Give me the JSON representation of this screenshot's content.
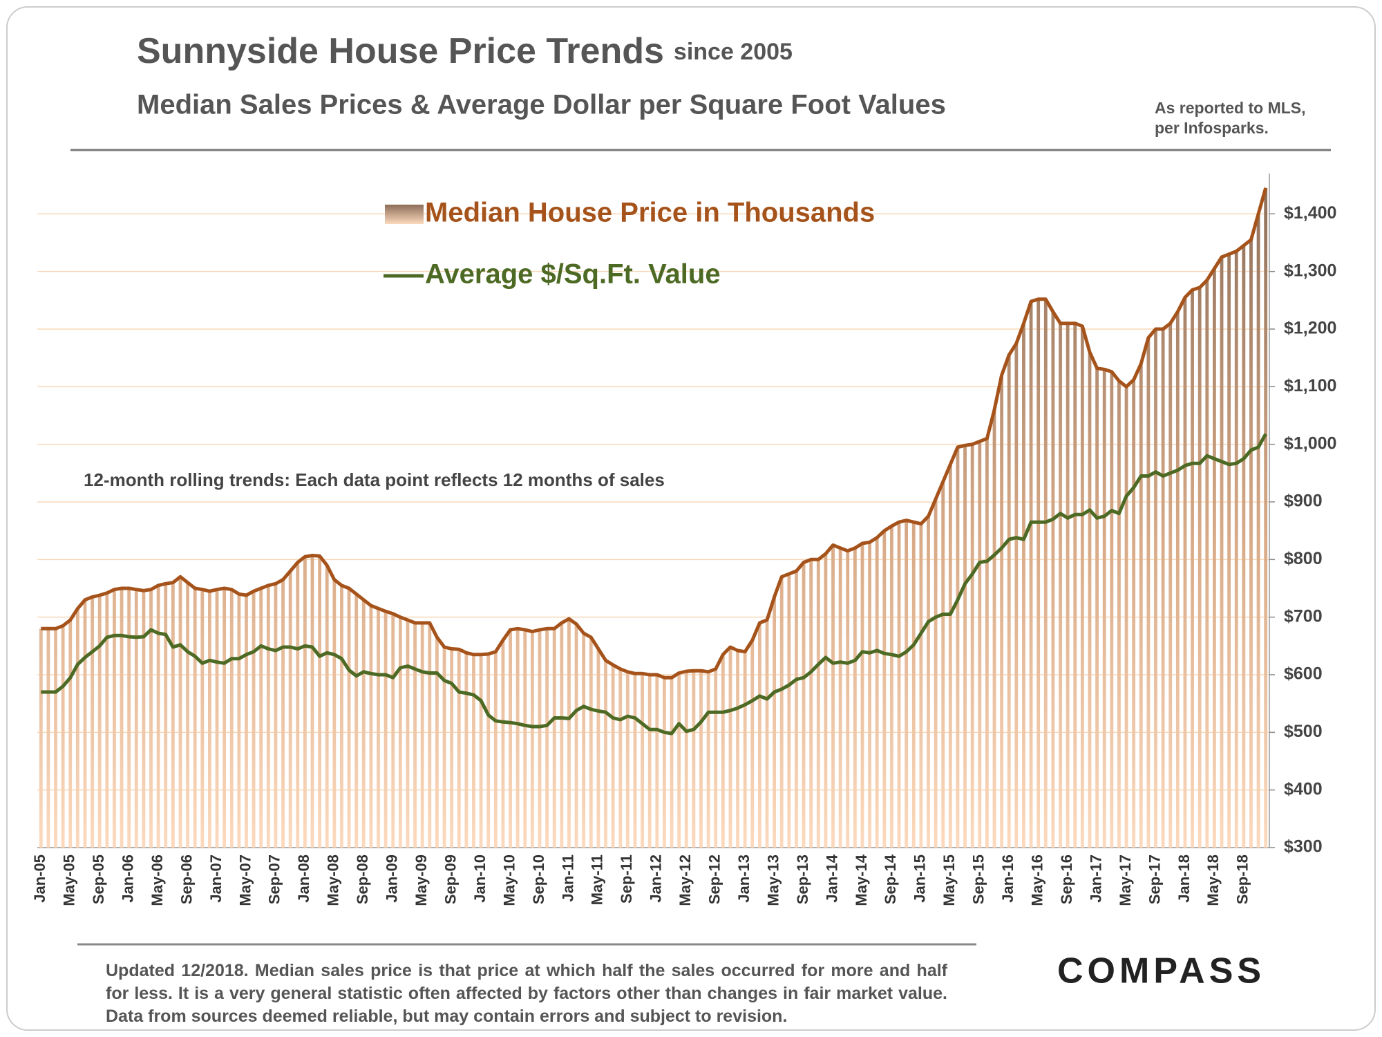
{
  "chart_data": {
    "type": "bar",
    "title": "Sunnyside House Price Trends",
    "title_suffix": "since 2005",
    "subtitle": "Median Sales Prices & Average Dollar per Square Foot Values",
    "note": [
      "As reported to MLS,",
      "per Infosparks."
    ],
    "annotation": "12-month rolling trends: Each data point reflects 12 months of sales",
    "footnote": "Updated 12/2018. Median sales price is that price at which half the sales occurred for more and half for less. It is a very general statistic often affected by factors other than changes in fair market value. Data from sources deemed reliable, but may contain errors and subject to revision.",
    "brand": "COMPASS",
    "categories": [
      "Jan-05",
      null,
      null,
      null,
      "May-05",
      null,
      null,
      null,
      "Sep-05",
      null,
      null,
      null,
      "Jan-06",
      null,
      null,
      null,
      "May-06",
      null,
      null,
      null,
      "Sep-06",
      null,
      null,
      null,
      "Jan-07",
      null,
      null,
      null,
      "May-07",
      null,
      null,
      null,
      "Sep-07",
      null,
      null,
      null,
      "Jan-08",
      null,
      null,
      null,
      "May-08",
      null,
      null,
      null,
      "Sep-08",
      null,
      null,
      null,
      "Jan-09",
      null,
      null,
      null,
      "May-09",
      null,
      null,
      null,
      "Sep-09",
      null,
      null,
      null,
      "Jan-10",
      null,
      null,
      null,
      "May-10",
      null,
      null,
      null,
      "Sep-10",
      null,
      null,
      null,
      "Jan-11",
      null,
      null,
      null,
      "May-11",
      null,
      null,
      null,
      "Sep-11",
      null,
      null,
      null,
      "Jan-12",
      null,
      null,
      null,
      "May-12",
      null,
      null,
      null,
      "Sep-12",
      null,
      null,
      null,
      "Jan-13",
      null,
      null,
      null,
      "May-13",
      null,
      null,
      null,
      "Sep-13",
      null,
      null,
      null,
      "Jan-14",
      null,
      null,
      null,
      "May-14",
      null,
      null,
      null,
      "Sep-14",
      null,
      null,
      null,
      "Jan-15",
      null,
      null,
      null,
      "May-15",
      null,
      null,
      null,
      "Sep-15",
      null,
      null,
      null,
      "Jan-16",
      null,
      null,
      null,
      "May-16",
      null,
      null,
      null,
      "Sep-16",
      null,
      null,
      null,
      "Jan-17",
      null,
      null,
      null,
      "May-17",
      null,
      null,
      null,
      "Sep-17",
      null,
      null,
      null,
      "Jan-18",
      null,
      null,
      null,
      "May-18",
      null,
      null,
      null,
      "Sep-18",
      null,
      null,
      null
    ],
    "series": [
      {
        "name": "Median House Price in Thousands",
        "color": "#a5531b",
        "values": [
          680,
          680,
          680,
          685,
          695,
          715,
          730,
          735,
          738,
          742,
          748,
          750,
          750,
          748,
          746,
          748,
          755,
          758,
          760,
          770,
          760,
          750,
          748,
          745,
          748,
          750,
          748,
          740,
          738,
          745,
          750,
          755,
          758,
          765,
          780,
          795,
          805,
          807,
          806,
          790,
          765,
          755,
          750,
          740,
          730,
          720,
          715,
          710,
          706,
          700,
          695,
          690,
          690,
          690,
          665,
          648,
          645,
          644,
          638,
          635,
          635,
          636,
          640,
          660,
          678,
          680,
          678,
          675,
          678,
          680,
          680,
          690,
          697,
          688,
          672,
          665,
          645,
          625,
          617,
          610,
          605,
          602,
          602,
          600,
          600,
          595,
          595,
          603,
          606,
          607,
          607,
          605,
          610,
          635,
          648,
          642,
          640,
          660,
          690,
          695,
          735,
          770,
          775,
          780,
          795,
          800,
          800,
          810,
          825,
          820,
          815,
          820,
          828,
          830,
          838,
          850,
          858,
          865,
          868,
          865,
          862,
          875,
          905,
          935,
          965,
          995,
          998,
          1000,
          1005,
          1010,
          1060,
          1120,
          1155,
          1175,
          1210,
          1248,
          1252,
          1252,
          1230,
          1210,
          1210,
          1210,
          1205,
          1160,
          1132,
          1130,
          1126,
          1110,
          1100,
          1112,
          1140,
          1185,
          1200,
          1200,
          1210,
          1230,
          1255,
          1268,
          1272,
          1285,
          1305,
          1325,
          1330,
          1335,
          1345,
          1355,
          1400,
          1445
        ]
      },
      {
        "name": "Average $/Sq.Ft. Value",
        "color": "#4d6a24",
        "values": [
          570,
          570,
          570,
          580,
          595,
          618,
          630,
          640,
          650,
          665,
          668,
          668,
          666,
          665,
          666,
          678,
          672,
          670,
          648,
          652,
          640,
          632,
          620,
          625,
          622,
          620,
          628,
          628,
          635,
          640,
          650,
          645,
          642,
          648,
          648,
          645,
          650,
          648,
          632,
          638,
          635,
          628,
          608,
          598,
          605,
          602,
          600,
          600,
          595,
          612,
          615,
          610,
          605,
          603,
          603,
          590,
          585,
          570,
          568,
          565,
          555,
          530,
          520,
          518,
          517,
          515,
          512,
          510,
          510,
          512,
          525,
          525,
          524,
          538,
          545,
          540,
          537,
          535,
          525,
          522,
          528,
          525,
          515,
          505,
          505,
          500,
          498,
          515,
          502,
          505,
          518,
          535,
          535,
          535,
          538,
          542,
          548,
          555,
          563,
          558,
          570,
          575,
          582,
          592,
          595,
          605,
          618,
          630,
          620,
          622,
          620,
          625,
          640,
          638,
          642,
          637,
          635,
          632,
          640,
          652,
          672,
          692,
          700,
          705,
          705,
          730,
          758,
          775,
          795,
          797,
          808,
          820,
          835,
          838,
          835,
          865,
          865,
          865,
          870,
          880,
          872,
          878,
          878,
          886,
          872,
          875,
          885,
          880,
          910,
          925,
          945,
          945,
          952,
          945,
          950,
          955,
          963,
          967,
          967,
          980,
          975,
          970,
          965,
          967,
          975,
          990,
          995,
          1018
        ]
      }
    ],
    "ylim": [
      300,
      1470
    ],
    "yticks": [
      {
        "value": 300,
        "label": "$300"
      },
      {
        "value": 400,
        "label": "$400"
      },
      {
        "value": 500,
        "label": "$500"
      },
      {
        "value": 600,
        "label": "$600"
      },
      {
        "value": 700,
        "label": "$700"
      },
      {
        "value": 800,
        "label": "$800"
      },
      {
        "value": 900,
        "label": "$900"
      },
      {
        "value": 1000,
        "label": "$1,000"
      },
      {
        "value": 1100,
        "label": "$1,100"
      },
      {
        "value": 1200,
        "label": "$1,200"
      },
      {
        "value": 1300,
        "label": "$1,300"
      },
      {
        "value": 1400,
        "label": "$1,400"
      }
    ],
    "grid": true
  }
}
